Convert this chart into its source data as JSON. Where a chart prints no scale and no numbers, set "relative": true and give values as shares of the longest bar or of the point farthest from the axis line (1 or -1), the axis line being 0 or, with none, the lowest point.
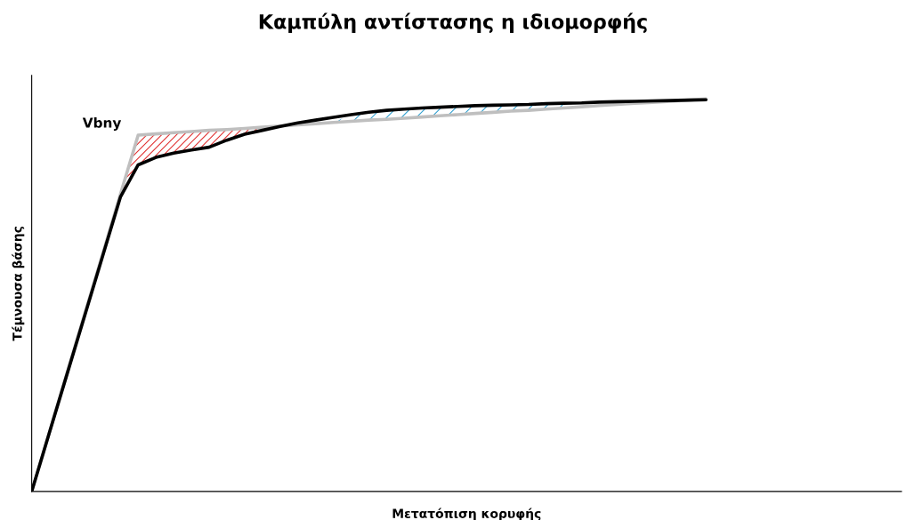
{
  "chart_data": {
    "type": "line",
    "title": "Καμπύλη αντίστασης η ιδιομορφής",
    "xlabel": "Μετατόπιση κορυφής",
    "ylabel": "Τέμνουσα βάσης",
    "relative": true,
    "annotations": [
      "Vbny"
    ],
    "categories": [
      null,
      null,
      null,
      null,
      null,
      null,
      null,
      null,
      null,
      null,
      null,
      null,
      null,
      null,
      null,
      null,
      null,
      null,
      null,
      null,
      null,
      null,
      null,
      null,
      null,
      null,
      null,
      null,
      null,
      null,
      null,
      null,
      null,
      null,
      null,
      null,
      null,
      null,
      null
    ],
    "series": [
      {
        "color": "#bfbfbf",
        "values": [
          0,
          0.151,
          0.303,
          0.454,
          0.605,
          0.757,
          0.908,
          0.911,
          0.914,
          0.917,
          0.92,
          0.922,
          0.925,
          0.928,
          0.931,
          0.934,
          0.937,
          0.94,
          0.943,
          0.946,
          0.948,
          0.951,
          0.954,
          0.957,
          0.96,
          0.963,
          0.966,
          0.969,
          0.971,
          0.974,
          0.977,
          0.98,
          0.983,
          0.986,
          0.989,
          0.991,
          0.994,
          0.997,
          1.0
        ]
      },
      {
        "color": "#000000",
        "values": [
          0,
          0.15,
          0.3,
          0.45,
          0.6,
          0.75,
          0.832,
          0.851,
          0.862,
          0.87,
          0.877,
          0.895,
          0.91,
          0.92,
          0.93,
          0.939,
          0.946,
          0.953,
          0.96,
          0.966,
          0.971,
          0.974,
          0.977,
          0.979,
          0.981,
          0.983,
          0.984,
          0.985,
          0.986,
          0.988,
          0.989,
          0.99,
          0.992,
          0.993,
          0.994,
          0.995,
          0.996,
          0.997,
          0.998
        ]
      }
    ]
  }
}
